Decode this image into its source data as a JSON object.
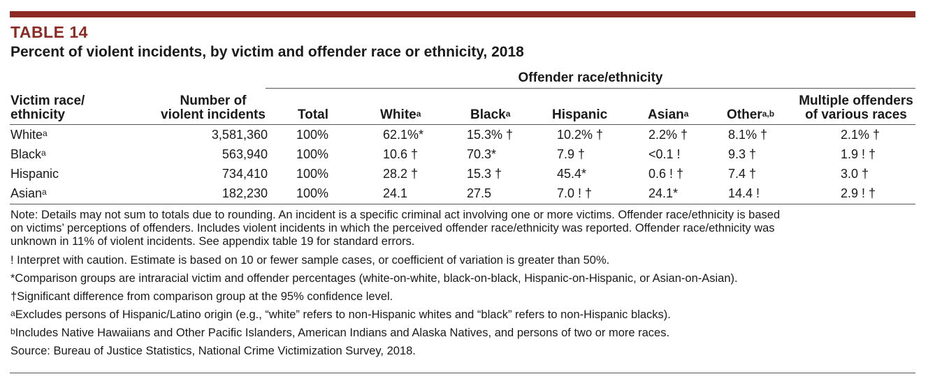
{
  "table_label": "TABLE 14",
  "title": "Percent of violent incidents, by victim and offender race or ethnicity, 2018",
  "group_header": "Offender race/ethnicity",
  "columns": {
    "victim_line1": "Victim race/",
    "victim_line2": "ethnicity",
    "number_line1": "Number of",
    "number_line2": "violent incidents",
    "total": "Total",
    "white": "White",
    "white_sup": "a",
    "black": "Black",
    "black_sup": "a",
    "hispanic": "Hispanic",
    "asian": "Asian",
    "asian_sup": "a",
    "other": "Other",
    "other_sup": "a,b",
    "multiple_line1": "Multiple offenders",
    "multiple_line2": "of various races"
  },
  "rows": [
    {
      "victim": "White",
      "victim_sup": "a",
      "number": "3,581,360",
      "total": "100%",
      "white": "62.1%*",
      "black": "15.3% †",
      "hispanic": "10.2% †",
      "asian": "2.2% †",
      "other": "8.1% †",
      "multiple": "2.1% †"
    },
    {
      "victim": "Black",
      "victim_sup": "a",
      "number": "563,940",
      "total": "100%",
      "white": "10.6 †",
      "black": "70.3*",
      "hispanic": "7.9 †",
      "asian": "<0.1 !",
      "other": "9.3 †",
      "multiple": "1.9 ! †"
    },
    {
      "victim": "Hispanic",
      "victim_sup": "",
      "number": "734,410",
      "total": "100%",
      "white": "28.2 †",
      "black": "15.3 †",
      "hispanic": "45.4*",
      "asian": "0.6 ! †",
      "other": "7.4 †",
      "multiple": "3.0 †"
    },
    {
      "victim": "Asian",
      "victim_sup": "a",
      "number": "182,230",
      "total": "100%",
      "white": "24.1",
      "black": "27.5",
      "hispanic": "7.0 ! †",
      "asian": "24.1*",
      "other": "14.4 !",
      "multiple": "2.9 ! †"
    }
  ],
  "notes": {
    "note_line1": "Note: Details may not sum to totals due to rounding. An incident is a specific criminal act involving one or more victims. Offender race/ethnicity is based",
    "note_line2": "on victims’ perceptions of offenders. Includes violent incidents in which the perceived offender race/ethnicity was reported. Offender race/ethnicity was",
    "note_line3": "unknown in 11% of violent incidents. See appendix table 19 for standard errors.",
    "caution": "! Interpret with caution. Estimate is based on 10 or fewer sample cases, or coefficient of variation is greater than 50%.",
    "comparison": "*Comparison groups are intraracial victim and offender percentages (white-on-white, black-on-black, Hispanic-on-Hispanic, or Asian-on-Asian).",
    "significance": "†Significant difference from comparison group at the 95% confidence level.",
    "footnote_a_mark": "a",
    "footnote_a": "Excludes persons of Hispanic/Latino origin (e.g., “white” refers to non-Hispanic whites and “black” refers to non-Hispanic blacks).",
    "footnote_b_mark": "b",
    "footnote_b": "Includes Native Hawaiians and Other Pacific Islanders, American Indians and Alaska Natives, and persons of two or more races.",
    "source": "Source: Bureau of Justice Statistics, National Crime Victimization Survey, 2018."
  },
  "colors": {
    "accent": "#8c2b23"
  }
}
